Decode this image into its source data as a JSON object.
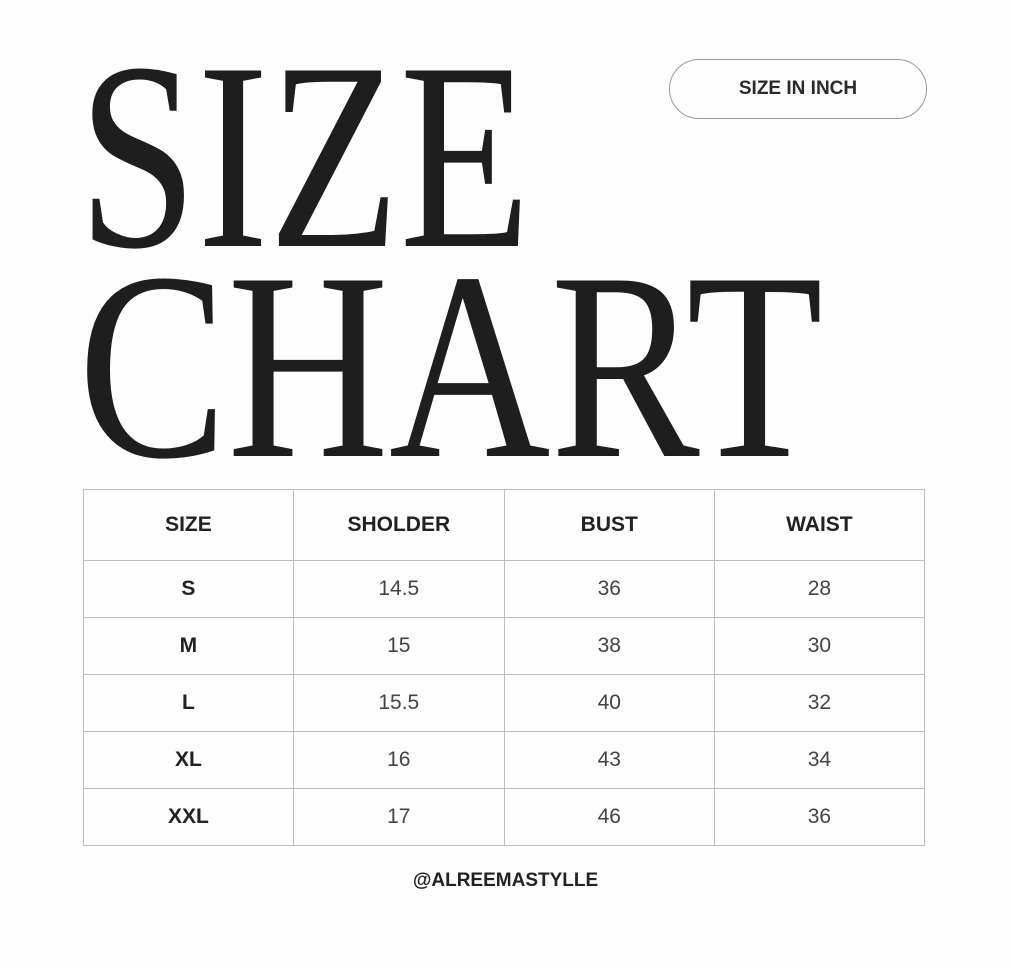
{
  "title": {
    "line1": "SIZE",
    "line2": "CHART"
  },
  "badge": "SIZE IN INCH",
  "table": {
    "headers": [
      "SIZE",
      "SHOLDER",
      "BUST",
      "WAIST"
    ],
    "rows": [
      [
        "S",
        "14.5",
        "36",
        "28"
      ],
      [
        "M",
        "15",
        "38",
        "30"
      ],
      [
        "L",
        "15.5",
        "40",
        "32"
      ],
      [
        "XL",
        "16",
        "43",
        "34"
      ],
      [
        "XXL",
        "17",
        "46",
        "36"
      ]
    ]
  },
  "handle": "@ALREEMASTYLLE"
}
